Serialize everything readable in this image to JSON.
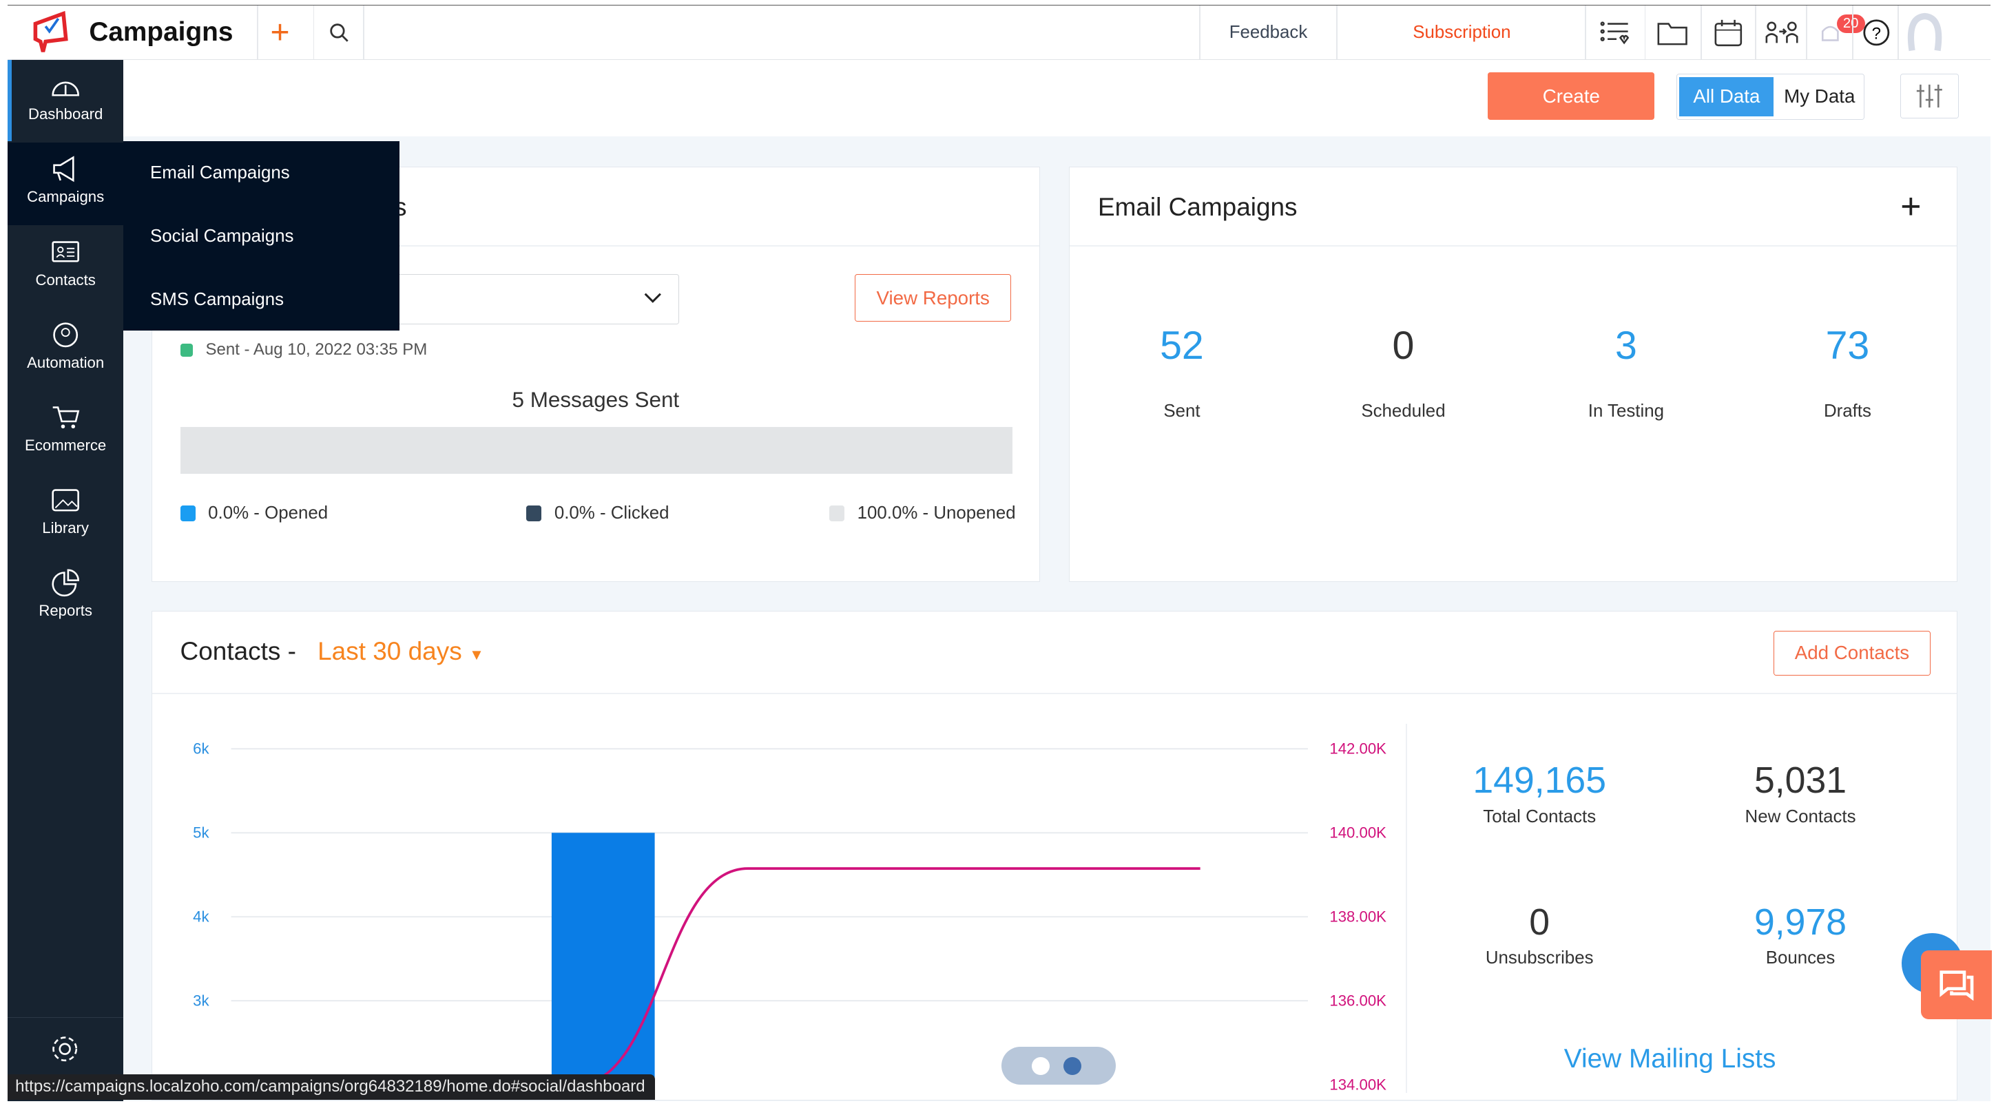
{
  "app": {
    "title": "Campaigns"
  },
  "topbar": {
    "feedback": "Feedback",
    "subscription": "Subscription",
    "notifications_count": "20"
  },
  "sidebar": {
    "items": [
      {
        "label": "Dashboard"
      },
      {
        "label": "Campaigns"
      },
      {
        "label": "Contacts"
      },
      {
        "label": "Automation"
      },
      {
        "label": "Ecommerce"
      },
      {
        "label": "Library"
      },
      {
        "label": "Reports"
      }
    ]
  },
  "flyout": {
    "items": [
      "Email Campaigns",
      "Social Campaigns",
      "SMS Campaigns"
    ]
  },
  "toolbar": {
    "create": "Create",
    "all_data": "All Data",
    "my_data": "My Data"
  },
  "recent": {
    "title_fragment": "s",
    "view_reports": "View Reports",
    "sent_info": "Sent - Aug 10, 2022 03:35 PM",
    "messages_sent": "5 Messages Sent",
    "opened_pct": 0.0,
    "legend": [
      "0.0% - Opened",
      "0.0% - Clicked",
      "100.0% - Unopened"
    ],
    "colors": {
      "opened": "#1a9df2",
      "clicked": "#34495e",
      "unopened": "#e3e5e7"
    }
  },
  "email_campaigns": {
    "title": "Email Campaigns",
    "stats": [
      {
        "value": "52",
        "label": "Sent"
      },
      {
        "value": "0",
        "label": "Scheduled"
      },
      {
        "value": "3",
        "label": "In Testing"
      },
      {
        "value": "73",
        "label": "Drafts"
      }
    ]
  },
  "contacts": {
    "title": "Contacts -",
    "period": "Last 30 days",
    "add_button": "Add Contacts",
    "stats": [
      {
        "value": "149,165",
        "label": "Total Contacts"
      },
      {
        "value": "5,031",
        "label": "New Contacts"
      },
      {
        "value": "0",
        "label": "Unsubscribes"
      },
      {
        "value": "9,978",
        "label": "Bounces"
      }
    ],
    "view_mailing_lists": "View Mailing Lists"
  },
  "chart_data": {
    "type": "bar",
    "left_ticks": [
      "6k",
      "5k",
      "4k",
      "3k"
    ],
    "right_ticks": [
      "142.00K",
      "140.00K",
      "138.00K",
      "136.00K",
      "134.00K"
    ],
    "ylim_left": [
      2000,
      6000
    ],
    "ylim_right": [
      134000,
      142000
    ],
    "bars": [
      {
        "x": 0.3,
        "value": 5000
      }
    ],
    "line": {
      "x": [
        0.32,
        0.4,
        0.48,
        0.9
      ],
      "values": [
        134000,
        136800,
        139150,
        139150
      ]
    },
    "colors": {
      "bar": "#0a7de6",
      "line": "#d1127c"
    }
  },
  "status_url": "https://campaigns.localzoho.com/campaigns/org64832189/home.do#social/dashboard"
}
